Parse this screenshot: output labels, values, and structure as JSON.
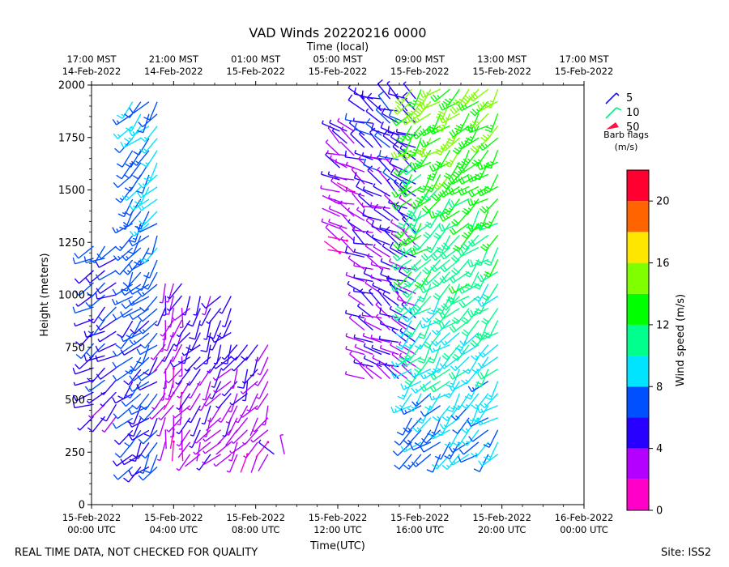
{
  "chart_data": {
    "type": "wind-barb profile (VAD)",
    "title": "VAD Winds 20220216 0000",
    "top_axis_label": "Time (local)",
    "xlabel": "Time(UTC)",
    "ylabel": "Height (meters)",
    "ylim": [
      0,
      2000
    ],
    "xlim_hours": [
      0,
      24
    ],
    "y_ticks": [
      0,
      250,
      500,
      750,
      1000,
      1250,
      1500,
      1750,
      2000
    ],
    "x_ticks_utc": [
      {
        "hour": 0,
        "line1": "15-Feb-2022",
        "line2": "00:00 UTC"
      },
      {
        "hour": 4,
        "line1": "15-Feb-2022",
        "line2": "04:00 UTC"
      },
      {
        "hour": 8,
        "line1": "15-Feb-2022",
        "line2": "08:00 UTC"
      },
      {
        "hour": 12,
        "line1": "15-Feb-2022",
        "line2": "12:00 UTC"
      },
      {
        "hour": 16,
        "line1": "15-Feb-2022",
        "line2": "16:00 UTC"
      },
      {
        "hour": 20,
        "line1": "15-Feb-2022",
        "line2": "20:00 UTC"
      },
      {
        "hour": 24,
        "line1": "16-Feb-2022",
        "line2": "00:00 UTC"
      }
    ],
    "x_ticks_local": [
      {
        "hour": 0,
        "line1": "17:00 MST",
        "line2": "14-Feb-2022"
      },
      {
        "hour": 4,
        "line1": "21:00 MST",
        "line2": "14-Feb-2022"
      },
      {
        "hour": 8,
        "line1": "01:00 MST",
        "line2": "15-Feb-2022"
      },
      {
        "hour": 12,
        "line1": "05:00 MST",
        "line2": "15-Feb-2022"
      },
      {
        "hour": 16,
        "line1": "09:00 MST",
        "line2": "15-Feb-2022"
      },
      {
        "hour": 20,
        "line1": "13:00 MST",
        "line2": "15-Feb-2022"
      },
      {
        "hour": 24,
        "line1": "17:00 MST",
        "line2": "15-Feb-2022"
      }
    ],
    "legend": {
      "entries": [
        {
          "label": "5",
          "color": "#1a10e8"
        },
        {
          "label": "10",
          "color": "#00ee88"
        },
        {
          "label": "50",
          "color": "#ff1040"
        }
      ],
      "title_line1": "Barb flags",
      "title_line2": "(m/s)"
    },
    "colorbar": {
      "label": "Wind speed (m/s)",
      "min": 0,
      "max": 22,
      "ticks": [
        0,
        4,
        8,
        12,
        16,
        20
      ],
      "bins": [
        {
          "from": 0,
          "to": 2,
          "color": "#ff00c8"
        },
        {
          "from": 2,
          "to": 4,
          "color": "#b400ff"
        },
        {
          "from": 4,
          "to": 6,
          "color": "#2800ff"
        },
        {
          "from": 6,
          "to": 8,
          "color": "#0050ff"
        },
        {
          "from": 8,
          "to": 10,
          "color": "#00e4ff"
        },
        {
          "from": 10,
          "to": 12,
          "color": "#00ff8c"
        },
        {
          "from": 12,
          "to": 14,
          "color": "#00ff00"
        },
        {
          "from": 14,
          "to": 16,
          "color": "#80ff00"
        },
        {
          "from": 16,
          "to": 18,
          "color": "#ffe600"
        },
        {
          "from": 18,
          "to": 20,
          "color": "#ff6400"
        },
        {
          "from": 20,
          "to": 22,
          "color": "#ff0030"
        }
      ]
    },
    "data_segments": [
      {
        "t_start": 0.1,
        "t_end": 1.2,
        "h_min": 400,
        "h_max": 1250,
        "dir_base": 235,
        "spd_base": 4.5
      },
      {
        "t_start": 2.0,
        "t_end": 3.2,
        "h_min": 150,
        "h_max": 1950,
        "dir_base": 220,
        "spd_base": 6.0
      },
      {
        "t_start": 3.6,
        "t_end": 4.4,
        "h_min": 300,
        "h_max": 1100,
        "dir_base": 200,
        "spd_base": 2.2
      },
      {
        "t_start": 4.8,
        "t_end": 6.8,
        "h_min": 200,
        "h_max": 1000,
        "dir_base": 215,
        "spd_base": 3.0
      },
      {
        "t_start": 7.1,
        "t_end": 8.6,
        "h_min": 200,
        "h_max": 780,
        "dir_base": 210,
        "spd_base": 2.4
      },
      {
        "t_start": 8.9,
        "t_end": 9.4,
        "h_min": 200,
        "h_max": 250,
        "dir_base": 330,
        "spd_base": 1.5
      },
      {
        "t_start": 12.1,
        "t_end": 12.8,
        "h_min": 1150,
        "h_max": 1800,
        "dir_base": 300,
        "spd_base": 1.8
      },
      {
        "t_start": 13.3,
        "t_end": 15.8,
        "h_min": 580,
        "h_max": 1950,
        "dir_base": 300,
        "spd_base": 3.5
      },
      {
        "t_start": 15.6,
        "t_end": 19.8,
        "h_min": 200,
        "h_max": 2000,
        "dir_base": 225,
        "spd_base": 7.5
      }
    ],
    "speed_range_note": "upper levels 15-20 UTC reach 10-16 m/s"
  },
  "footer": {
    "left_text": "REAL TIME DATA, NOT CHECKED FOR QUALITY",
    "right_text": "Site: ISS2"
  }
}
